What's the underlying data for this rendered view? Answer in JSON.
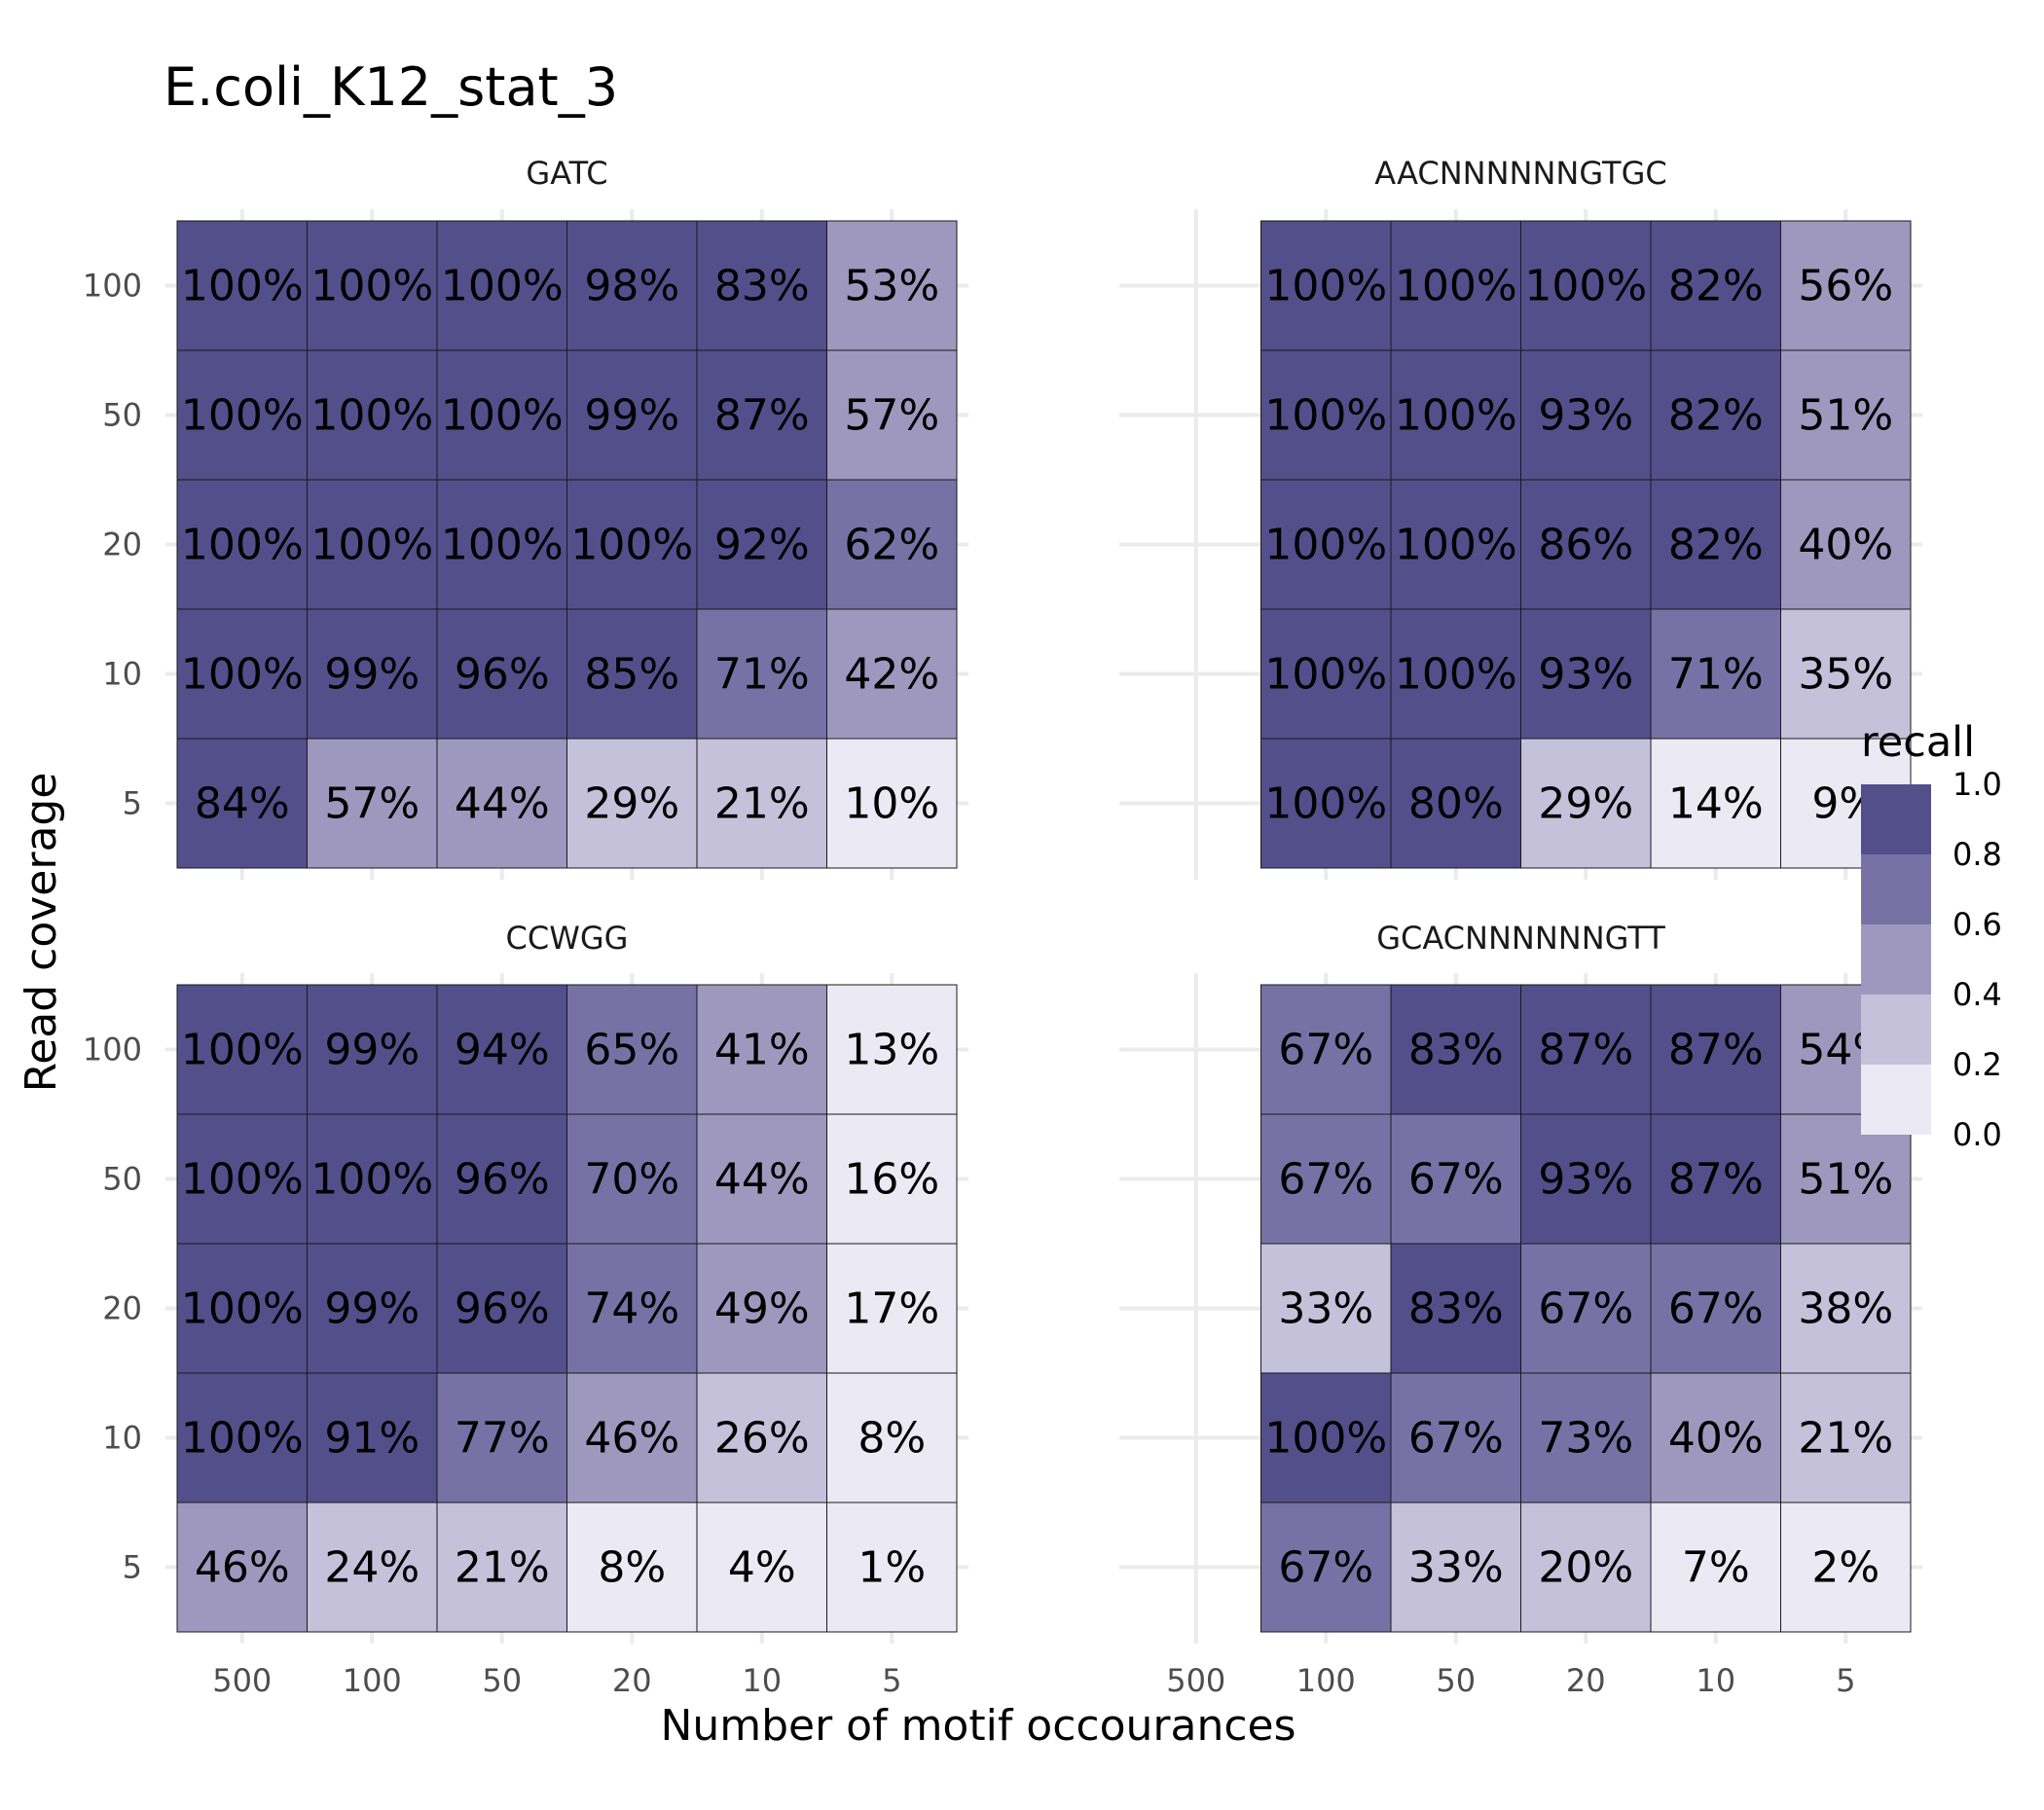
{
  "chart_data": {
    "type": "heatmap",
    "title": "E.coli_K12_stat_3",
    "xlabel": "Number of motif occourances",
    "ylabel": "Read coverage",
    "x_categories": [
      "500",
      "100",
      "50",
      "20",
      "10",
      "5"
    ],
    "y_categories": [
      "100",
      "50",
      "20",
      "10",
      "5"
    ],
    "legend": {
      "title": "recall",
      "position": "right",
      "ticks": [
        "1.0",
        "0.8",
        "0.6",
        "0.4",
        "0.2",
        "0.0"
      ],
      "bins": [
        {
          "min": 0.8,
          "max": 1.0,
          "color": "#534f8b"
        },
        {
          "min": 0.6,
          "max": 0.8,
          "color": "#7871a6"
        },
        {
          "min": 0.4,
          "max": 0.6,
          "color": "#9e98bf"
        },
        {
          "min": 0.2,
          "max": 0.4,
          "color": "#c5c1da"
        },
        {
          "min": 0.0,
          "max": 0.2,
          "color": "#ebe9f3"
        }
      ]
    },
    "panels": [
      {
        "name": "GATC",
        "x_present": [
          "500",
          "100",
          "50",
          "20",
          "10",
          "5"
        ],
        "values": [
          [
            1.0,
            1.0,
            1.0,
            0.98,
            0.83,
            0.53
          ],
          [
            1.0,
            1.0,
            1.0,
            0.99,
            0.87,
            0.57
          ],
          [
            1.0,
            1.0,
            1.0,
            1.0,
            0.92,
            0.62
          ],
          [
            1.0,
            0.99,
            0.96,
            0.85,
            0.71,
            0.42
          ],
          [
            0.84,
            0.57,
            0.44,
            0.29,
            0.21,
            0.1
          ]
        ],
        "labels": [
          [
            "100%",
            "100%",
            "100%",
            "98%",
            "83%",
            "53%"
          ],
          [
            "100%",
            "100%",
            "100%",
            "99%",
            "87%",
            "57%"
          ],
          [
            "100%",
            "100%",
            "100%",
            "100%",
            "92%",
            "62%"
          ],
          [
            "100%",
            "99%",
            "96%",
            "85%",
            "71%",
            "42%"
          ],
          [
            "84%",
            "57%",
            "44%",
            "29%",
            "21%",
            "10%"
          ]
        ]
      },
      {
        "name": "AACNNNNNNGTGC",
        "x_present": [
          "100",
          "50",
          "20",
          "10",
          "5"
        ],
        "values": [
          [
            1.0,
            1.0,
            1.0,
            0.82,
            0.56
          ],
          [
            1.0,
            1.0,
            0.93,
            0.82,
            0.51
          ],
          [
            1.0,
            1.0,
            0.86,
            0.82,
            0.4
          ],
          [
            1.0,
            1.0,
            0.93,
            0.71,
            0.35
          ],
          [
            1.0,
            0.8,
            0.29,
            0.14,
            0.09
          ]
        ],
        "labels": [
          [
            "100%",
            "100%",
            "100%",
            "82%",
            "56%"
          ],
          [
            "100%",
            "100%",
            "93%",
            "82%",
            "51%"
          ],
          [
            "100%",
            "100%",
            "86%",
            "82%",
            "40%"
          ],
          [
            "100%",
            "100%",
            "93%",
            "71%",
            "35%"
          ],
          [
            "100%",
            "80%",
            "29%",
            "14%",
            "9%"
          ]
        ]
      },
      {
        "name": "CCWGG",
        "x_present": [
          "500",
          "100",
          "50",
          "20",
          "10",
          "5"
        ],
        "values": [
          [
            1.0,
            0.99,
            0.94,
            0.65,
            0.41,
            0.13
          ],
          [
            1.0,
            1.0,
            0.96,
            0.7,
            0.44,
            0.16
          ],
          [
            1.0,
            0.99,
            0.96,
            0.74,
            0.49,
            0.17
          ],
          [
            1.0,
            0.91,
            0.77,
            0.46,
            0.26,
            0.08
          ],
          [
            0.46,
            0.24,
            0.21,
            0.08,
            0.04,
            0.01
          ]
        ],
        "labels": [
          [
            "100%",
            "99%",
            "94%",
            "65%",
            "41%",
            "13%"
          ],
          [
            "100%",
            "100%",
            "96%",
            "70%",
            "44%",
            "16%"
          ],
          [
            "100%",
            "99%",
            "96%",
            "74%",
            "49%",
            "17%"
          ],
          [
            "100%",
            "91%",
            "77%",
            "46%",
            "26%",
            "8%"
          ],
          [
            "46%",
            "24%",
            "21%",
            "8%",
            "4%",
            "1%"
          ]
        ]
      },
      {
        "name": "GCACNNNNNNGTT",
        "x_present": [
          "100",
          "50",
          "20",
          "10",
          "5"
        ],
        "values": [
          [
            0.67,
            0.83,
            0.87,
            0.87,
            0.54
          ],
          [
            0.67,
            0.67,
            0.93,
            0.87,
            0.51
          ],
          [
            0.33,
            0.83,
            0.67,
            0.67,
            0.38
          ],
          [
            1.0,
            0.67,
            0.73,
            0.4,
            0.21
          ],
          [
            0.67,
            0.33,
            0.2,
            0.07,
            0.02
          ]
        ],
        "labels": [
          [
            "67%",
            "83%",
            "87%",
            "87%",
            "54%"
          ],
          [
            "67%",
            "67%",
            "93%",
            "87%",
            "51%"
          ],
          [
            "33%",
            "83%",
            "67%",
            "67%",
            "38%"
          ],
          [
            "100%",
            "67%",
            "73%",
            "40%",
            "21%"
          ],
          [
            "67%",
            "33%",
            "20%",
            "7%",
            "2%"
          ]
        ]
      }
    ]
  }
}
